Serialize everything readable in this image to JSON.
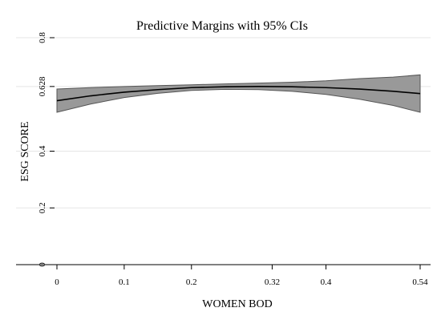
{
  "chart_data": {
    "type": "line",
    "title": "Predictive Margins with 95% CIs",
    "xlabel": "WOMEN BOD",
    "ylabel": "ESG SCORE",
    "x_ticks": [
      "0",
      "0.1",
      "0.2",
      "0.32",
      "0.4",
      "0.54"
    ],
    "x_tick_values": [
      0,
      0.1,
      0.2,
      0.32,
      0.4,
      0.54
    ],
    "y_ticks": [
      "0",
      "0.2",
      "0.4",
      "0.628",
      "0.8"
    ],
    "y_tick_values": [
      0,
      0.2,
      0.4,
      0.628,
      0.8
    ],
    "xlim": [
      0,
      0.54
    ],
    "ylim": [
      0,
      0.8
    ],
    "grid": true,
    "series": [
      {
        "x": [
          0,
          0.05,
          0.1,
          0.15,
          0.2,
          0.25,
          0.3,
          0.35,
          0.4,
          0.45,
          0.5,
          0.54
        ],
        "y": [
          0.578,
          0.595,
          0.608,
          0.617,
          0.624,
          0.627,
          0.628,
          0.627,
          0.624,
          0.619,
          0.611,
          0.603
        ],
        "lower": [
          0.537,
          0.566,
          0.589,
          0.604,
          0.614,
          0.618,
          0.617,
          0.611,
          0.6,
          0.583,
          0.561,
          0.537
        ],
        "upper": [
          0.619,
          0.624,
          0.628,
          0.631,
          0.634,
          0.637,
          0.64,
          0.643,
          0.648,
          0.656,
          0.661,
          0.669
        ]
      }
    ]
  }
}
